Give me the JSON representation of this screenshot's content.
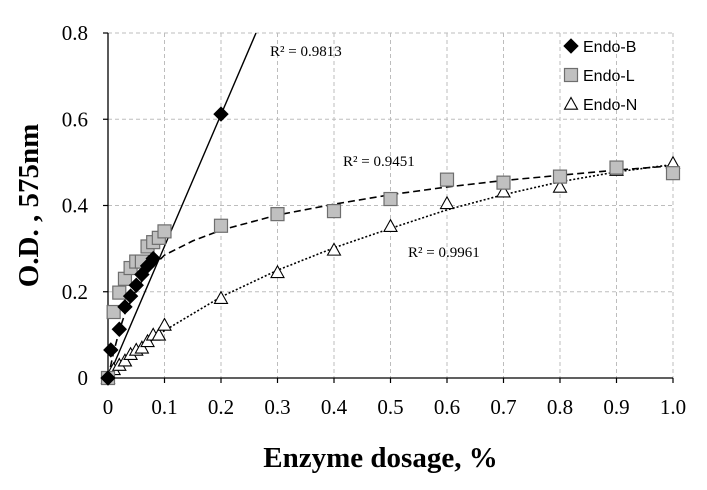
{
  "chart_data": {
    "type": "scatter",
    "xlabel": "Enzyme dosage, %",
    "ylabel": "O.D. , 575nm",
    "xlim": [
      0,
      1.0
    ],
    "ylim": [
      0,
      0.8
    ],
    "x_ticks": [
      "0",
      "0.1",
      "0.2",
      "0.3",
      "0.4",
      "0.5",
      "0.6",
      "0.7",
      "0.8",
      "0.9",
      "1.0"
    ],
    "y_ticks": [
      "0",
      "0.2",
      "0.4",
      "0.6",
      "0.8"
    ],
    "grid": true,
    "legend_position": "top-right",
    "series": [
      {
        "name": "Endo-B",
        "marker": "diamond",
        "color": "#000000",
        "trendline": "solid",
        "r2_label": "R² = 0.9813",
        "points": [
          [
            0,
            0
          ],
          [
            0.005,
            0.065
          ],
          [
            0.02,
            0.113
          ],
          [
            0.03,
            0.165
          ],
          [
            0.04,
            0.19
          ],
          [
            0.05,
            0.215
          ],
          [
            0.06,
            0.24
          ],
          [
            0.07,
            0.26
          ],
          [
            0.08,
            0.277
          ],
          [
            0.2,
            0.612
          ]
        ],
        "fit": [
          [
            0,
            0
          ],
          [
            0.262,
            0.8
          ]
        ]
      },
      {
        "name": "Endo-L",
        "marker": "square",
        "color": "#c0c0c0",
        "trendline": "dashed",
        "r2_label": "R² = 0.9451",
        "points": [
          [
            0,
            0
          ],
          [
            0.01,
            0.153
          ],
          [
            0.02,
            0.198
          ],
          [
            0.03,
            0.23
          ],
          [
            0.04,
            0.255
          ],
          [
            0.05,
            0.27
          ],
          [
            0.06,
            0.27
          ],
          [
            0.07,
            0.305
          ],
          [
            0.08,
            0.315
          ],
          [
            0.09,
            0.325
          ],
          [
            0.1,
            0.34
          ],
          [
            0.2,
            0.353
          ],
          [
            0.3,
            0.38
          ],
          [
            0.4,
            0.387
          ],
          [
            0.5,
            0.415
          ],
          [
            0.6,
            0.46
          ],
          [
            0.7,
            0.453
          ],
          [
            0.8,
            0.467
          ],
          [
            0.9,
            0.488
          ],
          [
            1.0,
            0.475
          ]
        ],
        "fit": [
          [
            0,
            0
          ],
          [
            0.01,
            0.06
          ],
          [
            0.02,
            0.11
          ],
          [
            0.03,
            0.15
          ],
          [
            0.05,
            0.205
          ],
          [
            0.07,
            0.245
          ],
          [
            0.1,
            0.285
          ],
          [
            0.15,
            0.318
          ],
          [
            0.2,
            0.343
          ],
          [
            0.3,
            0.378
          ],
          [
            0.4,
            0.403
          ],
          [
            0.5,
            0.425
          ],
          [
            0.6,
            0.443
          ],
          [
            0.7,
            0.458
          ],
          [
            0.8,
            0.47
          ],
          [
            0.9,
            0.482
          ],
          [
            1.0,
            0.492
          ]
        ]
      },
      {
        "name": "Endo-N",
        "marker": "triangle",
        "color": "#ffffff",
        "trendline": "dotted",
        "r2_label": "R² = 0.9961",
        "points": [
          [
            0,
            0
          ],
          [
            0.01,
            0.02
          ],
          [
            0.02,
            0.03
          ],
          [
            0.03,
            0.04
          ],
          [
            0.04,
            0.055
          ],
          [
            0.05,
            0.065
          ],
          [
            0.06,
            0.07
          ],
          [
            0.07,
            0.085
          ],
          [
            0.08,
            0.1
          ],
          [
            0.09,
            0.1
          ],
          [
            0.1,
            0.123
          ],
          [
            0.2,
            0.185
          ],
          [
            0.3,
            0.245
          ],
          [
            0.4,
            0.297
          ],
          [
            0.5,
            0.352
          ],
          [
            0.6,
            0.405
          ],
          [
            0.7,
            0.432
          ],
          [
            0.8,
            0.443
          ],
          [
            0.9,
            0.482
          ],
          [
            1.0,
            0.498
          ]
        ],
        "fit": [
          [
            0,
            0
          ],
          [
            0.05,
            0.06
          ],
          [
            0.1,
            0.11
          ],
          [
            0.2,
            0.188
          ],
          [
            0.3,
            0.25
          ],
          [
            0.4,
            0.302
          ],
          [
            0.5,
            0.347
          ],
          [
            0.6,
            0.39
          ],
          [
            0.7,
            0.425
          ],
          [
            0.8,
            0.455
          ],
          [
            0.9,
            0.478
          ],
          [
            1.0,
            0.495
          ]
        ]
      }
    ]
  }
}
